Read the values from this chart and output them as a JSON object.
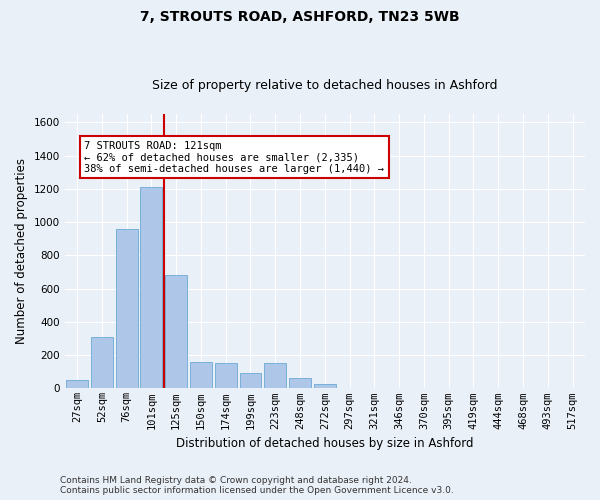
{
  "title1": "7, STROUTS ROAD, ASHFORD, TN23 5WB",
  "title2": "Size of property relative to detached houses in Ashford",
  "xlabel": "Distribution of detached houses by size in Ashford",
  "ylabel": "Number of detached properties",
  "footer": "Contains HM Land Registry data © Crown copyright and database right 2024.\nContains public sector information licensed under the Open Government Licence v3.0.",
  "categories": [
    "27sqm",
    "52sqm",
    "76sqm",
    "101sqm",
    "125sqm",
    "150sqm",
    "174sqm",
    "199sqm",
    "223sqm",
    "248sqm",
    "272sqm",
    "297sqm",
    "321sqm",
    "346sqm",
    "370sqm",
    "395sqm",
    "419sqm",
    "444sqm",
    "468sqm",
    "493sqm",
    "517sqm"
  ],
  "values": [
    50,
    310,
    960,
    1210,
    680,
    160,
    155,
    95,
    155,
    60,
    25,
    5,
    0,
    5,
    0,
    5,
    0,
    0,
    0,
    0,
    5
  ],
  "bar_color": "#aec6e8",
  "bar_edge_color": "#6aaad4",
  "vline_color": "#cc0000",
  "annotation_text": "7 STROUTS ROAD: 121sqm\n← 62% of detached houses are smaller (2,335)\n38% of semi-detached houses are larger (1,440) →",
  "annotation_box_color": "#ffffff",
  "annotation_box_edge": "#cc0000",
  "ylim": [
    0,
    1650
  ],
  "yticks": [
    0,
    200,
    400,
    600,
    800,
    1000,
    1200,
    1400,
    1600
  ],
  "bg_color": "#eaf0f8",
  "plot_bg_color": "#eaf0f8",
  "grid_color": "#ffffff",
  "title1_fontsize": 10,
  "title2_fontsize": 9,
  "xlabel_fontsize": 8.5,
  "ylabel_fontsize": 8.5,
  "tick_fontsize": 7.5,
  "annotation_fontsize": 7.5,
  "footer_fontsize": 6.5
}
